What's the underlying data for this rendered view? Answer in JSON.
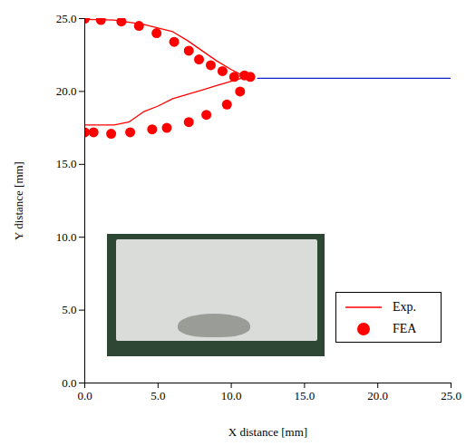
{
  "chart_data": {
    "type": "line",
    "x_label": "X distance [mm]",
    "y_label": "Y distance [mm]",
    "xlim": [
      0,
      25
    ],
    "ylim": [
      0,
      25
    ],
    "xticks": [
      {
        "value": 0,
        "label": "0.0"
      },
      {
        "value": 5,
        "label": "5.0"
      },
      {
        "value": 10,
        "label": "10.0"
      },
      {
        "value": 15,
        "label": "15.0"
      },
      {
        "value": 20,
        "label": "20.0"
      },
      {
        "value": 25,
        "label": "25.0"
      }
    ],
    "yticks": [
      {
        "value": 0,
        "label": "0.0"
      },
      {
        "value": 5,
        "label": "5.0"
      },
      {
        "value": 10,
        "label": "10.0"
      },
      {
        "value": 15,
        "label": "15.0"
      },
      {
        "value": 20,
        "label": "20.0"
      },
      {
        "value": 25,
        "label": "25.0"
      }
    ],
    "legend": "lower right",
    "series": [
      {
        "name": "Exp.",
        "type": "line",
        "color": "#ff0000",
        "line_style": "solid",
        "x": [
          0,
          2,
          4,
          6,
          7,
          8,
          9,
          10,
          11,
          10,
          9,
          8,
          7,
          6,
          5,
          4,
          3,
          2,
          0
        ],
        "values": [
          24.95,
          24.9,
          24.6,
          24.1,
          23.5,
          22.8,
          22.1,
          21.5,
          21.0,
          20.7,
          20.4,
          20.1,
          19.8,
          19.5,
          19.0,
          18.6,
          17.9,
          17.7,
          17.7
        ]
      },
      {
        "name": "FEA",
        "type": "scatter",
        "color": "#ff0000",
        "marker": "circle",
        "x": [
          0,
          1.1,
          2.5,
          3.7,
          4.9,
          6.1,
          7.1,
          7.8,
          8.6,
          9.4,
          10.2,
          10.9,
          11.3,
          0,
          0.6,
          1.8,
          3.1,
          4.6,
          5.6,
          7.1,
          8.3,
          9.7,
          10.6
        ],
        "values": [
          25.0,
          24.9,
          24.8,
          24.5,
          24.0,
          23.4,
          22.8,
          22.2,
          21.8,
          21.4,
          21.0,
          21.1,
          21.0,
          17.2,
          17.2,
          17.1,
          17.2,
          17.4,
          17.5,
          17.9,
          18.4,
          19.1,
          20.0
        ]
      },
      {
        "type": "line",
        "color": "#1a1acc",
        "line_style": "solid",
        "x": [
          11.8,
          25
        ],
        "values": [
          20.9,
          20.9
        ]
      }
    ]
  }
}
